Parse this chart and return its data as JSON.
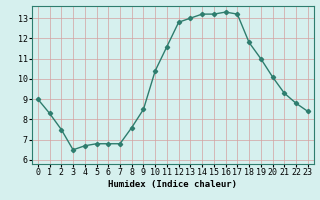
{
  "x": [
    0,
    1,
    2,
    3,
    4,
    5,
    6,
    7,
    8,
    9,
    10,
    11,
    12,
    13,
    14,
    15,
    16,
    17,
    18,
    19,
    20,
    21,
    22,
    23
  ],
  "y": [
    9.0,
    8.3,
    7.5,
    6.5,
    6.7,
    6.8,
    6.8,
    6.8,
    7.6,
    8.5,
    10.4,
    11.6,
    12.8,
    13.0,
    13.2,
    13.2,
    13.3,
    13.2,
    11.8,
    11.0,
    10.1,
    9.3,
    8.8,
    8.4
  ],
  "line_color": "#2e7d6e",
  "marker": "D",
  "markersize": 2.2,
  "bg_color": "#d6f0ee",
  "grid_color": "#d4a0a0",
  "xlabel": "Humidex (Indice chaleur)",
  "xlim": [
    -0.5,
    23.5
  ],
  "ylim": [
    5.8,
    13.6
  ],
  "yticks": [
    6,
    7,
    8,
    9,
    10,
    11,
    12,
    13
  ],
  "xticks": [
    0,
    1,
    2,
    3,
    4,
    5,
    6,
    7,
    8,
    9,
    10,
    11,
    12,
    13,
    14,
    15,
    16,
    17,
    18,
    19,
    20,
    21,
    22,
    23
  ],
  "xlabel_fontsize": 6.5,
  "tick_fontsize": 6.0,
  "linewidth": 1.0
}
